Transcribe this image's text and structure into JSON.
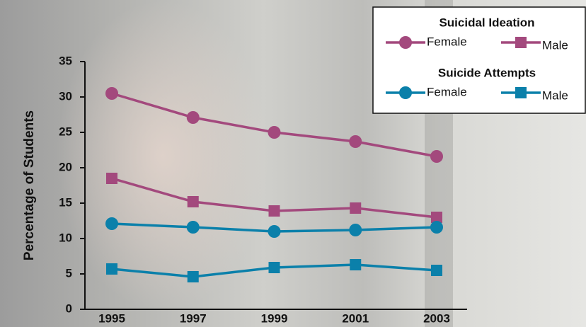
{
  "chart_data": {
    "type": "line",
    "y_label": "Percentage of Students",
    "categories": [
      "1995",
      "1997",
      "1999",
      "2001",
      "2003"
    ],
    "series": [
      {
        "name": "Female",
        "group": "Suicidal Ideation",
        "marker": "circle",
        "color": "#a3497d",
        "values": [
          30.5,
          27.1,
          25.0,
          23.7,
          21.6
        ]
      },
      {
        "name": "Male",
        "group": "Suicidal Ideation",
        "marker": "square",
        "color": "#a3497d",
        "values": [
          18.5,
          15.2,
          13.9,
          14.3,
          13.0
        ]
      },
      {
        "name": "Female",
        "group": "Suicide Attempts",
        "marker": "circle",
        "color": "#0b80aa",
        "values": [
          12.1,
          11.6,
          11.0,
          11.2,
          11.6
        ]
      },
      {
        "name": "Male",
        "group": "Suicide Attempts",
        "marker": "square",
        "color": "#0b80aa",
        "values": [
          5.7,
          4.6,
          5.9,
          6.3,
          5.5
        ]
      }
    ],
    "ylim": [
      0,
      35
    ],
    "yticks": [
      0,
      5,
      10,
      15,
      20,
      25,
      30,
      35
    ]
  }
}
